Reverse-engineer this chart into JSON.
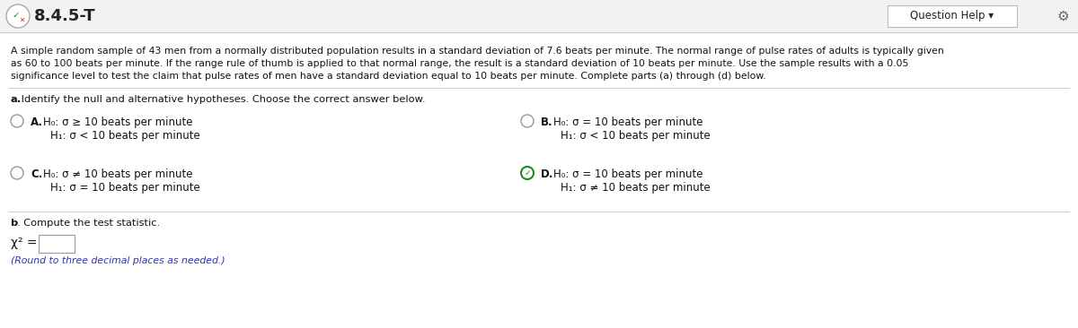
{
  "title_text": "8.4.5-T",
  "question_help_text": "Question Help ▾",
  "background_color": "#ffffff",
  "header_bg": "#f5f5f5",
  "border_color": "#cccccc",
  "paragraph_lines": [
    "A simple random sample of 43 men from a normally distributed population results in a standard deviation of 7.6 beats per minute. The normal range of pulse rates of adults is typically given",
    "as 60 to 100 beats per minute. If the range rule of thumb is applied to that normal range, the result is a standard deviation of 10 beats per minute. Use the sample results with a 0.05",
    "significance level to test the claim that pulse rates of men have a standard deviation equal to 10 beats per minute. Complete parts (a) through (d) below."
  ],
  "part_a_label_bold": "a.",
  "part_a_label_rest": " Identify the null and alternative hypotheses. Choose the correct answer below.",
  "options": {
    "A": {
      "h0": "H₀: σ ≥ 10 beats per minute",
      "h1": "H₁: σ < 10 beats per minute",
      "selected": false,
      "col": 0
    },
    "B": {
      "h0": "H₀: σ = 10 beats per minute",
      "h1": "H₁: σ < 10 beats per minute",
      "selected": false,
      "col": 1
    },
    "C": {
      "h0": "H₀: σ ≠ 10 beats per minute",
      "h1": "H₁: σ = 10 beats per minute",
      "selected": false,
      "col": 0
    },
    "D": {
      "h0": "H₀: σ = 10 beats per minute",
      "h1": "H₁: σ ≠ 10 beats per minute",
      "selected": true,
      "col": 1
    }
  },
  "part_b_label": "b",
  "part_b_rest": ". Compute the test statistic.",
  "chi_label": "χ² =",
  "round_note": "(Round to three decimal places as needed.)",
  "text_color": "#000000",
  "grey_text": "#444444",
  "radio_color": "#aaaaaa",
  "selected_check_color": "#228B22",
  "italic_color": "#3333aa"
}
